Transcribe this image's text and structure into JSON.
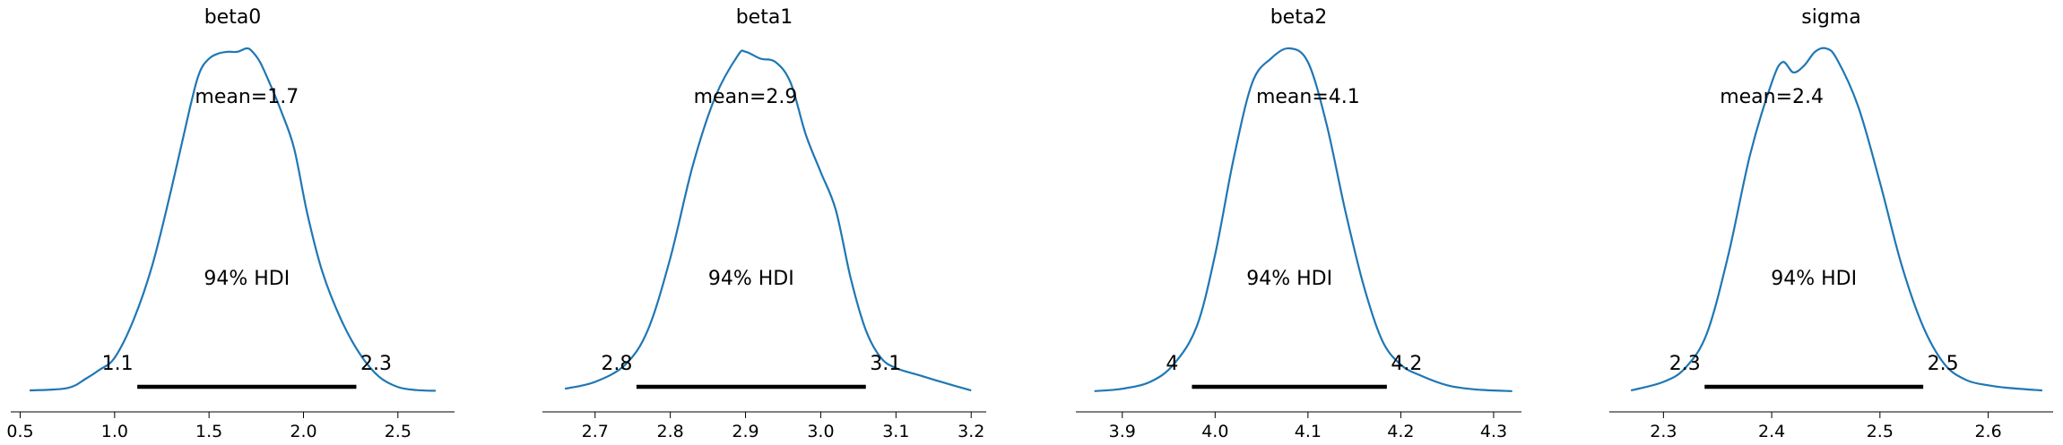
{
  "chart_data": [
    {
      "type": "area",
      "title": "beta0",
      "xlim": [
        0.45,
        2.8
      ],
      "xticks": [
        0.5,
        1.0,
        1.5,
        2.0,
        2.5
      ],
      "xtick_labels": [
        "0.5",
        "1.0",
        "1.5",
        "2.0",
        "2.5"
      ],
      "mean": 1.7,
      "mean_label": "mean=1.7",
      "hdi_label": "94% HDI",
      "hdi": [
        1.12,
        2.28
      ],
      "hdi_low_label": "1.1",
      "hdi_high_label": "2.3",
      "density": {
        "x": [
          0.55,
          0.75,
          0.85,
          0.92,
          1.0,
          1.1,
          1.2,
          1.3,
          1.4,
          1.45,
          1.5,
          1.55,
          1.6,
          1.65,
          1.7,
          1.73,
          1.77,
          1.82,
          1.88,
          1.95,
          2.02,
          2.1,
          2.2,
          2.3,
          2.4,
          2.5,
          2.6,
          2.7
        ],
        "y": [
          0.005,
          0.012,
          0.04,
          0.065,
          0.1,
          0.21,
          0.37,
          0.59,
          0.83,
          0.93,
          0.97,
          0.985,
          0.99,
          0.99,
          1.0,
          0.99,
          0.96,
          0.9,
          0.82,
          0.71,
          0.52,
          0.35,
          0.21,
          0.11,
          0.045,
          0.015,
          0.006,
          0.004
        ]
      },
      "color": "#1f77b4"
    },
    {
      "type": "area",
      "title": "beta1",
      "xlim": [
        2.63,
        3.22
      ],
      "xticks": [
        2.7,
        2.8,
        2.9,
        3.0,
        3.1,
        3.2
      ],
      "xtick_labels": [
        "2.7",
        "2.8",
        "2.9",
        "3.0",
        "3.1",
        "3.2"
      ],
      "mean": 2.9,
      "mean_label": "mean=2.9",
      "hdi_label": "94% HDI",
      "hdi": [
        2.755,
        3.06
      ],
      "hdi_low_label": "2.8",
      "hdi_high_label": "3.1",
      "density": {
        "x": [
          2.66,
          2.7,
          2.74,
          2.77,
          2.8,
          2.83,
          2.86,
          2.89,
          2.9,
          2.92,
          2.94,
          2.96,
          2.98,
          3.0,
          3.02,
          3.04,
          3.06,
          3.08,
          3.1,
          3.13,
          3.16,
          3.2
        ],
        "y": [
          0.01,
          0.03,
          0.08,
          0.18,
          0.39,
          0.66,
          0.86,
          0.98,
          0.99,
          0.97,
          0.96,
          0.9,
          0.75,
          0.64,
          0.53,
          0.33,
          0.18,
          0.1,
          0.07,
          0.05,
          0.03,
          0.005
        ]
      },
      "color": "#1f77b4"
    },
    {
      "type": "area",
      "title": "beta2",
      "xlim": [
        3.85,
        4.33
      ],
      "xticks": [
        3.9,
        4.0,
        4.1,
        4.2,
        4.3
      ],
      "xtick_labels": [
        "3.9",
        "4.0",
        "4.1",
        "4.2",
        "4.3"
      ],
      "mean": 4.1,
      "mean_label": "mean=4.1",
      "hdi_label": "94% HDI",
      "hdi": [
        3.975,
        4.185
      ],
      "hdi_low_label": "4",
      "hdi_high_label": "4.2",
      "density": {
        "x": [
          3.87,
          3.9,
          3.93,
          3.955,
          3.98,
          4.0,
          4.02,
          4.04,
          4.06,
          4.08,
          4.1,
          4.12,
          4.14,
          4.16,
          4.18,
          4.2,
          4.22,
          4.25,
          4.28,
          4.32
        ],
        "y": [
          0.003,
          0.01,
          0.03,
          0.08,
          0.19,
          0.4,
          0.68,
          0.9,
          0.97,
          1.0,
          0.96,
          0.78,
          0.53,
          0.31,
          0.15,
          0.08,
          0.05,
          0.02,
          0.008,
          0.003
        ]
      },
      "color": "#1f77b4"
    },
    {
      "type": "area",
      "title": "sigma",
      "xlim": [
        2.25,
        2.66
      ],
      "xticks": [
        2.3,
        2.4,
        2.5,
        2.6
      ],
      "xtick_labels": [
        "2.3",
        "2.4",
        "2.5",
        "2.6"
      ],
      "mean": 2.4,
      "mean_label": "mean=2.4",
      "hdi_label": "94% HDI",
      "hdi": [
        2.338,
        2.54
      ],
      "hdi_low_label": "2.3",
      "hdi_high_label": "2.5",
      "density": {
        "x": [
          2.27,
          2.3,
          2.32,
          2.34,
          2.36,
          2.38,
          2.4,
          2.41,
          2.42,
          2.43,
          2.44,
          2.45,
          2.46,
          2.48,
          2.5,
          2.52,
          2.54,
          2.56,
          2.58,
          2.6,
          2.62,
          2.65
        ],
        "y": [
          0.005,
          0.03,
          0.07,
          0.17,
          0.4,
          0.69,
          0.9,
          0.96,
          0.93,
          0.95,
          0.99,
          1.0,
          0.97,
          0.83,
          0.61,
          0.37,
          0.19,
          0.08,
          0.035,
          0.02,
          0.012,
          0.005
        ]
      },
      "color": "#1f77b4"
    }
  ]
}
